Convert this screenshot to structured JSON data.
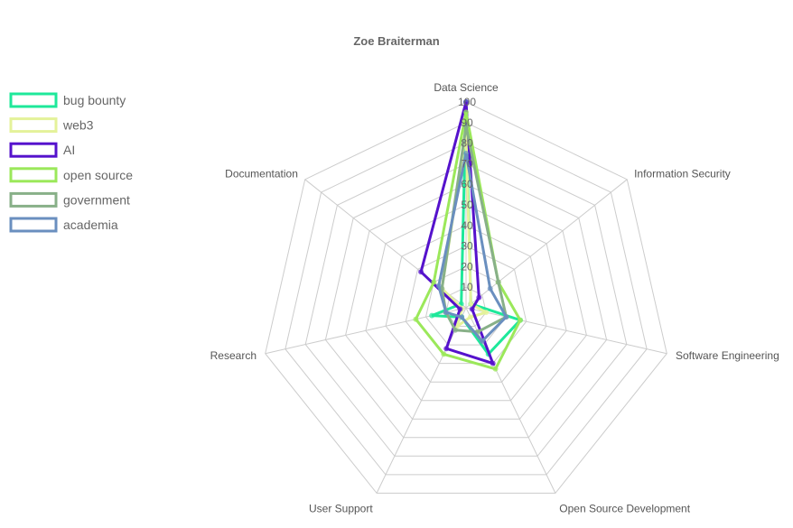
{
  "chart_data": {
    "type": "radar",
    "title": "Zoe Braiterman",
    "axes": [
      "Data Science",
      "Information Security",
      "Software Engineering",
      "Open Source Development",
      "User Support",
      "Research",
      "Documentation"
    ],
    "r_range": [
      0,
      100
    ],
    "ticks": [
      10,
      20,
      30,
      40,
      50,
      60,
      70,
      80,
      90,
      100
    ],
    "grid": true,
    "legend_position": "left",
    "series": [
      {
        "name": "bug bounty",
        "color": "#1ee89a",
        "values": [
          100,
          3,
          27,
          25,
          5,
          17,
          3
        ]
      },
      {
        "name": "web3",
        "color": "#e4f29a",
        "values": [
          85,
          3,
          10,
          5,
          10,
          2,
          15
        ]
      },
      {
        "name": "AI",
        "color": "#5512cc",
        "values": [
          100,
          8,
          3,
          30,
          22,
          3,
          28
        ]
      },
      {
        "name": "open source",
        "color": "#9be85a",
        "values": [
          95,
          20,
          27,
          33,
          25,
          25,
          20
        ]
      },
      {
        "name": "government",
        "color": "#88b088",
        "values": [
          88,
          20,
          20,
          13,
          12,
          10,
          15
        ]
      },
      {
        "name": "academia",
        "color": "#6a8fbf",
        "values": [
          75,
          15,
          20,
          18,
          5,
          10,
          17
        ]
      }
    ]
  }
}
